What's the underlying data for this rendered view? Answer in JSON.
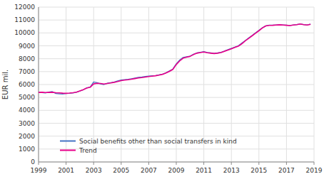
{
  "chart_data": {
    "type": "line",
    "ylabel": "EUR mil.",
    "x": [
      1999.0,
      1999.25,
      1999.5,
      1999.75,
      2000.0,
      2000.25,
      2000.5,
      2000.75,
      2001.0,
      2001.25,
      2001.5,
      2001.75,
      2002.0,
      2002.25,
      2002.5,
      2002.75,
      2003.0,
      2003.25,
      2003.5,
      2003.75,
      2004.0,
      2004.25,
      2004.5,
      2004.75,
      2005.0,
      2005.25,
      2005.5,
      2005.75,
      2006.0,
      2006.25,
      2006.5,
      2006.75,
      2007.0,
      2007.25,
      2007.5,
      2007.75,
      2008.0,
      2008.25,
      2008.5,
      2008.75,
      2009.0,
      2009.25,
      2009.5,
      2009.75,
      2010.0,
      2010.25,
      2010.5,
      2010.75,
      2011.0,
      2011.25,
      2011.5,
      2011.75,
      2012.0,
      2012.25,
      2012.5,
      2012.75,
      2013.0,
      2013.25,
      2013.5,
      2013.75,
      2014.0,
      2014.25,
      2014.5,
      2014.75,
      2015.0,
      2015.25,
      2015.5,
      2015.75,
      2016.0,
      2016.25,
      2016.5,
      2016.75,
      2017.0,
      2017.25,
      2017.5,
      2017.75,
      2018.0,
      2018.25,
      2018.5,
      2018.75
    ],
    "series": [
      {
        "name": "Social benefits other than social transfers in kind",
        "color": "#4472C4",
        "values": [
          5400,
          5380,
          5350,
          5420,
          5450,
          5300,
          5280,
          5260,
          5300,
          5320,
          5350,
          5400,
          5500,
          5600,
          5750,
          5800,
          6200,
          6150,
          6050,
          6000,
          6100,
          6150,
          6200,
          6280,
          6350,
          6380,
          6400,
          6450,
          6500,
          6550,
          6580,
          6620,
          6650,
          6680,
          6700,
          6750,
          6800,
          6900,
          7050,
          7200,
          7600,
          7900,
          8100,
          8150,
          8200,
          8350,
          8450,
          8500,
          8550,
          8480,
          8450,
          8420,
          8450,
          8500,
          8600,
          8700,
          8800,
          8900,
          9000,
          9200,
          9400,
          9600,
          9800,
          10000,
          10200,
          10400,
          10550,
          10600,
          10600,
          10620,
          10640,
          10620,
          10600,
          10580,
          10620,
          10650,
          10700,
          10650,
          10620,
          10680
        ]
      },
      {
        "name": "Trend",
        "color": "#E8008A",
        "values": [
          5390,
          5400,
          5380,
          5390,
          5400,
          5370,
          5350,
          5330,
          5320,
          5340,
          5370,
          5410,
          5500,
          5600,
          5720,
          5790,
          6050,
          6100,
          6080,
          6040,
          6080,
          6120,
          6170,
          6230,
          6300,
          6340,
          6370,
          6410,
          6460,
          6510,
          6540,
          6580,
          6620,
          6650,
          6680,
          6730,
          6790,
          6890,
          7020,
          7170,
          7550,
          7830,
          8050,
          8120,
          8180,
          8320,
          8430,
          8480,
          8520,
          8460,
          8430,
          8400,
          8430,
          8480,
          8580,
          8670,
          8770,
          8870,
          8970,
          9150,
          9380,
          9570,
          9770,
          9970,
          10170,
          10380,
          10540,
          10580,
          10590,
          10610,
          10630,
          10610,
          10590,
          10570,
          10610,
          10640,
          10690,
          10640,
          10610,
          10670
        ]
      }
    ],
    "xlim": [
      1999,
      2019
    ],
    "xticks": [
      1999,
      2001,
      2003,
      2005,
      2007,
      2009,
      2011,
      2013,
      2015,
      2017,
      2019
    ],
    "ylim": [
      0,
      12000
    ],
    "yticks": [
      0,
      1000,
      2000,
      3000,
      4000,
      5000,
      6000,
      7000,
      8000,
      9000,
      10000,
      11000,
      12000
    ],
    "grid": true,
    "legend": "lower left"
  }
}
